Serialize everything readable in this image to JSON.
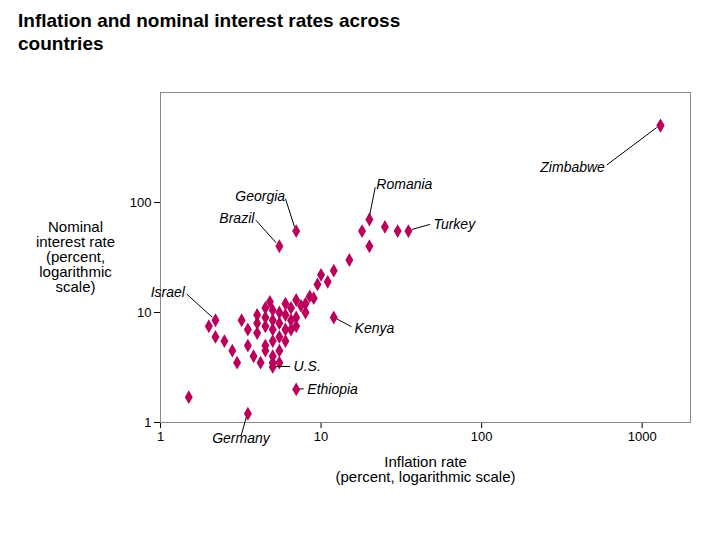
{
  "chart_data": {
    "type": "scatter",
    "title": "Inflation and nominal interest rates across\ncountries",
    "xlabel": "Inflation rate\n(percent, logarithmic scale)",
    "ylabel": "Nominal\ninterest rate\n(percent,\nlogarithmic\nscale)",
    "x": [
      1.5,
      2.0,
      2.2,
      2.5,
      2.8,
      3.0,
      3.2,
      3.5,
      3.5,
      3.8,
      4.0,
      4.0,
      4.0,
      4.2,
      4.5,
      4.5,
      4.5,
      4.5,
      4.5,
      4.8,
      5.0,
      5.0,
      5.0,
      5.0,
      5.0,
      5.0,
      5.5,
      5.5,
      5.5,
      5.5,
      5.5,
      6.0,
      6.0,
      6.0,
      6.0,
      6.5,
      6.5,
      6.5,
      7.0,
      7.0,
      7.0,
      7.5,
      8.0,
      8.0,
      8.5,
      9.0,
      9.5,
      10.0,
      11.0,
      12.0,
      15.0,
      18.0,
      20.0,
      25.0,
      30.0,
      1300.0
    ],
    "values": [
      1.7,
      7.5,
      6.0,
      5.5,
      4.5,
      3.5,
      8.5,
      7.0,
      5.0,
      4.0,
      9.5,
      8.0,
      6.5,
      3.5,
      11.0,
      9.0,
      7.5,
      5.0,
      4.5,
      12.5,
      10.5,
      8.5,
      7.0,
      5.5,
      4.0,
      3.5,
      10.0,
      8.0,
      6.0,
      4.5,
      3.5,
      12.0,
      9.5,
      7.0,
      5.5,
      11.0,
      8.5,
      7.0,
      13.0,
      9.0,
      7.5,
      11.5,
      12.0,
      10.0,
      14.0,
      13.5,
      18.0,
      22.0,
      19.0,
      24.0,
      30.0,
      55.0,
      40.0,
      60.0,
      55.0,
      500.0
    ],
    "annotations": [
      {
        "text": "Georgia",
        "x": 7.0,
        "y": 55.0
      },
      {
        "text": "Romania",
        "x": 20.0,
        "y": 70.0
      },
      {
        "text": "Turkey",
        "x": 35.0,
        "y": 55.0
      },
      {
        "text": "Zimbabwe",
        "x": 1300.0,
        "y": 500.0
      },
      {
        "text": "Brazil",
        "x": 5.5,
        "y": 40.0
      },
      {
        "text": "Israel",
        "x": 2.2,
        "y": 8.5
      },
      {
        "text": "Kenya",
        "x": 12.0,
        "y": 9.0
      },
      {
        "text": "U.S.",
        "x": 5.0,
        "y": 3.2
      },
      {
        "text": "Ethiopia",
        "x": 7.0,
        "y": 2.0
      },
      {
        "text": "Germany",
        "x": 3.5,
        "y": 1.2
      }
    ],
    "color": "#bb005a",
    "marker": "diamond",
    "log": true,
    "grid": false,
    "xlim": [
      1,
      2000
    ],
    "xticks": [
      1,
      10,
      100,
      1000
    ],
    "ylim": [
      1,
      1000
    ],
    "yticks": [
      1,
      10,
      100
    ]
  }
}
